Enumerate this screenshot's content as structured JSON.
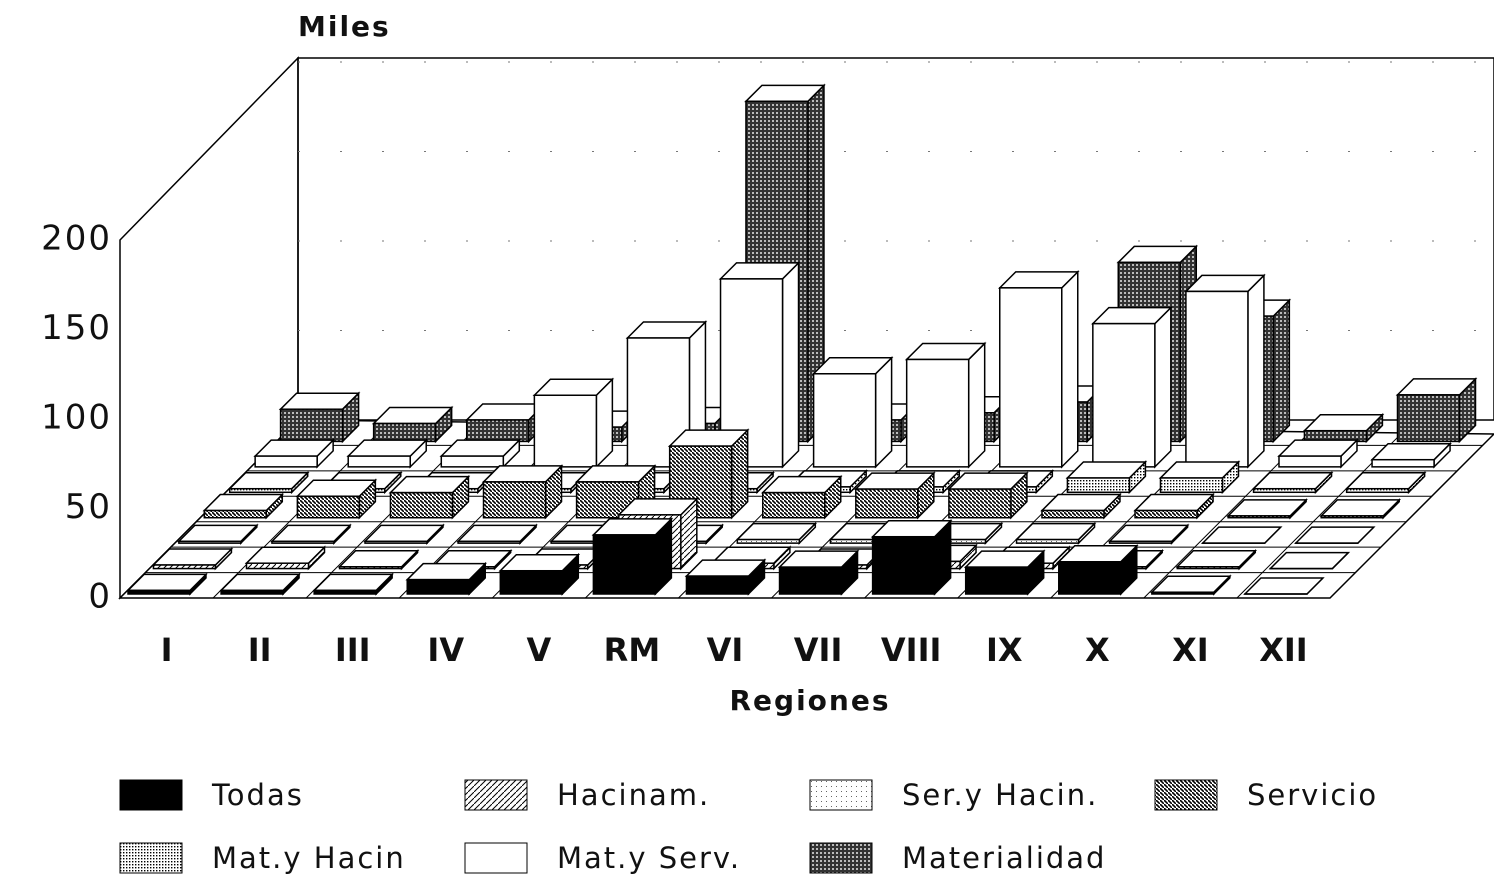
{
  "chart_data": {
    "type": "bar3d",
    "title": "Miles",
    "x_label": "Regiones",
    "categories": [
      "I",
      "II",
      "III",
      "IV",
      "V",
      "RM",
      "VI",
      "VII",
      "VIII",
      "IX",
      "X",
      "XI",
      "XII"
    ],
    "ylim": [
      0,
      200
    ],
    "yticks": [
      0,
      50,
      100,
      150,
      200
    ],
    "grid": true,
    "series": [
      {
        "name": "Todas",
        "values": [
          2,
          2,
          2,
          8,
          13,
          33,
          10,
          15,
          32,
          15,
          18,
          1,
          0
        ]
      },
      {
        "name": "Hacinam.",
        "values": [
          2,
          3,
          1,
          1,
          2,
          30,
          3,
          2,
          4,
          3,
          1,
          1,
          0
        ]
      },
      {
        "name": "Ser.y Hacin.",
        "values": [
          1,
          1,
          1,
          1,
          1,
          1,
          2,
          2,
          2,
          2,
          1,
          0,
          0
        ]
      },
      {
        "name": "Servicio",
        "values": [
          4,
          12,
          14,
          20,
          20,
          40,
          14,
          16,
          16,
          4,
          4,
          1,
          1
        ]
      },
      {
        "name": "Mat.y Hacin",
        "values": [
          2,
          2,
          2,
          2,
          2,
          2,
          3,
          3,
          3,
          8,
          8,
          2,
          2
        ]
      },
      {
        "name": "Mat.y Serv.",
        "values": [
          6,
          6,
          6,
          40,
          72,
          105,
          52,
          60,
          100,
          80,
          98,
          6,
          4
        ]
      },
      {
        "name": "Materialidad",
        "values": [
          18,
          10,
          12,
          8,
          10,
          190,
          12,
          16,
          22,
          100,
          70,
          6,
          26
        ]
      }
    ]
  }
}
